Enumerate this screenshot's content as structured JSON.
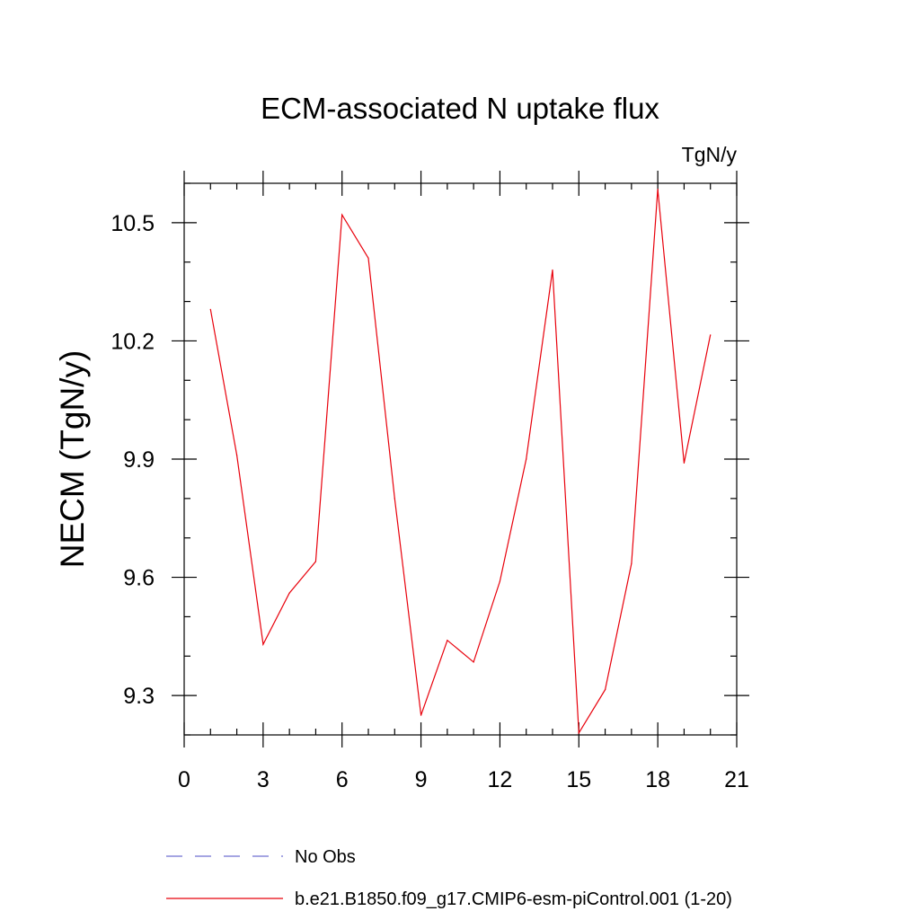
{
  "chart_data": {
    "type": "line",
    "title": "ECM-associated N uptake flux",
    "units": "TgN/y",
    "xlabel": "",
    "ylabel": "NECM  (TgN/y)",
    "xlim": [
      0,
      21
    ],
    "ylim": [
      9.2,
      10.6
    ],
    "xticks": [
      0,
      3,
      6,
      9,
      12,
      15,
      18,
      21
    ],
    "xticklabels": [
      "0",
      "3",
      "6",
      "9",
      "12",
      "15",
      "18",
      "21"
    ],
    "xminor_step": 1,
    "yticks": [
      9.3,
      9.6,
      9.9,
      10.2,
      10.5
    ],
    "yticklabels": [
      "9.3",
      "9.6",
      "9.9",
      "10.2",
      "10.5"
    ],
    "yminor_step": 0.1,
    "grid": false,
    "legend_position": "bottom",
    "series": [
      {
        "name": "No Obs",
        "color": "#6f6fd0",
        "dash": "dashed",
        "x": [],
        "y": []
      },
      {
        "name": "b.e21.B1850.f09_g17.CMIP6-esm-piControl.001 (1-20)",
        "color": "#e8000b",
        "dash": "solid",
        "x": [
          1,
          2,
          3,
          4,
          5,
          6,
          7,
          8,
          9,
          10,
          11,
          12,
          13,
          14,
          15,
          16,
          17,
          18,
          19,
          20
        ],
        "y": [
          10.28,
          9.91,
          9.43,
          9.56,
          9.64,
          10.52,
          10.41,
          9.8,
          9.25,
          9.44,
          9.385,
          9.59,
          9.9,
          10.38,
          9.205,
          9.315,
          9.635,
          10.585,
          9.89,
          10.215
        ]
      }
    ]
  }
}
